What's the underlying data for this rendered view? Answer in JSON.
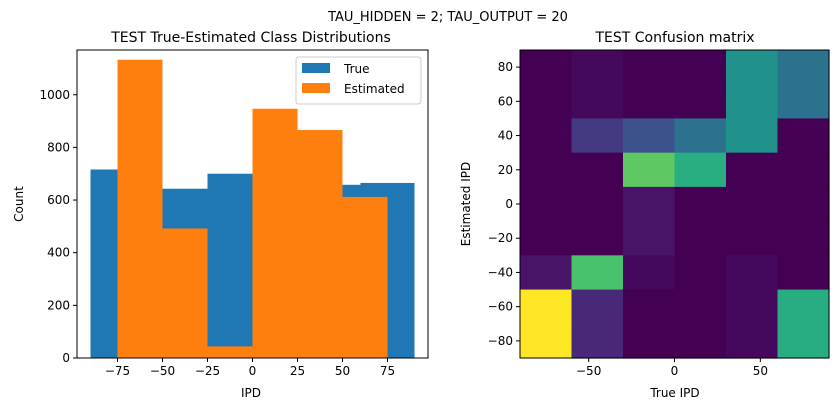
{
  "suptitle": "TAU_HIDDEN = 2; TAU_OUTPUT = 20",
  "chart_data": [
    {
      "type": "bar",
      "title": "TEST True-Estimated Class Distributions",
      "xlabel": "IPD",
      "ylabel": "Count",
      "xlim": [
        -97.5,
        97.5
      ],
      "ylim": [
        0,
        1170
      ],
      "xticks": [
        -75,
        -50,
        -25,
        0,
        25,
        50,
        75
      ],
      "xtick_labels": [
        "−75",
        "−50",
        "−25",
        "0",
        "25",
        "50",
        "75"
      ],
      "yticks": [
        0,
        200,
        400,
        600,
        800,
        1000
      ],
      "yticks_labels": [
        "0",
        "200",
        "400",
        "600",
        "800",
        "1000"
      ],
      "legend": {
        "location": "top-right",
        "entries": [
          "True",
          "Estimated"
        ]
      },
      "series": [
        {
          "name": "True",
          "color": "#1f77b4",
          "bins": [
            {
              "x0": -90,
              "x1": -75,
              "value": 716
            },
            {
              "x0": -75,
              "x1": -50,
              "value": 714
            },
            {
              "x0": -50,
              "x1": -25,
              "value": 643
            },
            {
              "x0": -25,
              "x1": 0,
              "value": 700
            },
            {
              "x0": 0,
              "x1": 25,
              "value": 670
            },
            {
              "x0": 25,
              "x1": 50,
              "value": 650
            },
            {
              "x0": 50,
              "x1": 60,
              "value": 658
            },
            {
              "x0": 60,
              "x1": 75,
              "value": 665
            },
            {
              "x0": 75,
              "x1": 90,
              "value": 665
            }
          ]
        },
        {
          "name": "Estimated",
          "color": "#ff7f0e",
          "bins": [
            {
              "x0": -75,
              "x1": -50,
              "value": 1133
            },
            {
              "x0": -50,
              "x1": -25,
              "value": 492
            },
            {
              "x0": -25,
              "x1": 0,
              "value": 44
            },
            {
              "x0": 0,
              "x1": 25,
              "value": 947
            },
            {
              "x0": 25,
              "x1": 50,
              "value": 866
            },
            {
              "x0": 50,
              "x1": 75,
              "value": 612
            }
          ]
        }
      ]
    },
    {
      "type": "heatmap",
      "title": "TEST Confusion matrix",
      "xlabel": "True IPD",
      "ylabel": "Estimated IPD",
      "xlim": [
        -90,
        90
      ],
      "ylim": [
        -90,
        90
      ],
      "xticks": [
        -50,
        0,
        50
      ],
      "xtick_labels": [
        "−50",
        "0",
        "50"
      ],
      "yticks": [
        -80,
        -60,
        -40,
        -20,
        0,
        20,
        40,
        60,
        80
      ],
      "ytick_labels": [
        "−80",
        "−60",
        "−40",
        "−20",
        "0",
        "20",
        "40",
        "60",
        "80"
      ],
      "columns": 6,
      "rows_top_to_bottom": [
        [
          "#440154",
          "#46085c",
          "#440154",
          "#440154",
          "#21918c",
          "#2c728e"
        ],
        [
          "#440154",
          "#46085c",
          "#440154",
          "#440154",
          "#21918c",
          "#2c728e"
        ],
        [
          "#440154",
          "#443a83",
          "#3b528b",
          "#2c728e",
          "#21918c",
          "#440154"
        ],
        [
          "#440154",
          "#440154",
          "#5ec962",
          "#28ae80",
          "#440154",
          "#440154"
        ],
        [
          "#440154",
          "#440154",
          "#481467",
          "#440154",
          "#440154",
          "#440154"
        ],
        [
          "#440154",
          "#440154",
          "#481467",
          "#440154",
          "#440154",
          "#440154"
        ],
        [
          "#481467",
          "#4ac16d",
          "#46085c",
          "#440154",
          "#46085c",
          "#440154"
        ],
        [
          "#fde725",
          "#482878",
          "#440154",
          "#440154",
          "#46085c",
          "#27ad81"
        ],
        [
          "#fde725",
          "#482878",
          "#440154",
          "#440154",
          "#46085c",
          "#27ad81"
        ]
      ]
    }
  ]
}
